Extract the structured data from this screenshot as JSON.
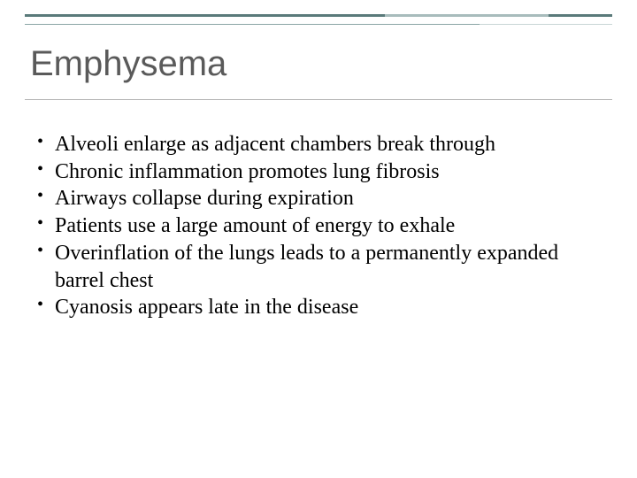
{
  "title": "Emphysema",
  "bullets": [
    "Alveoli enlarge as adjacent chambers break through",
    "Chronic inflammation promotes lung fibrosis",
    "Airways collapse during expiration",
    "Patients use a large amount of energy to exhale",
    "Overinflation of the lungs leads to a permanently expanded barrel chest",
    "Cyanosis appears late in the disease"
  ],
  "colors": {
    "border_primary": "#5a7a7a",
    "border_secondary": "#8aa5a5",
    "title_text": "#5a5a5a",
    "body_text": "#000000",
    "background": "#ffffff"
  },
  "typography": {
    "title_fontsize": 40,
    "body_fontsize": 24,
    "title_family": "Segoe UI, Trebuchet MS, Arial, sans-serif",
    "body_family": "Georgia, Times New Roman, serif"
  }
}
